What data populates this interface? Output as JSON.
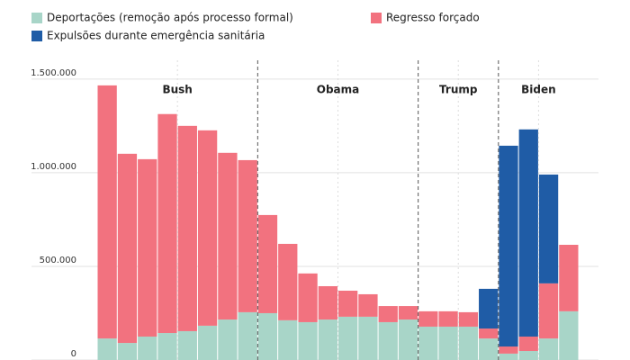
{
  "chart_data": {
    "type": "stacked_bar",
    "categories": [
      null,
      null,
      null,
      null,
      null,
      null,
      null,
      null,
      null,
      null,
      null,
      null,
      null,
      null,
      null,
      null,
      null,
      null,
      null,
      null,
      null,
      null,
      null,
      null
    ],
    "series": [
      {
        "name": "Deportações (remoção após processo formal)",
        "color": "#a8d5c8",
        "values": [
          115000,
          91000,
          125000,
          144000,
          154000,
          183000,
          216000,
          255000,
          250000,
          212000,
          202000,
          216000,
          231000,
          231000,
          202000,
          216000,
          178000,
          178000,
          178000,
          115000,
          34000,
          48000,
          115000,
          260000
        ]
      },
      {
        "name": "Regresso forçado",
        "color": "#f2727f",
        "values": [
          1351000,
          1010000,
          947000,
          1169000,
          1096000,
          1043000,
          890000,
          812000,
          524000,
          408000,
          260000,
          178000,
          139000,
          120000,
          86000,
          72000,
          82000,
          82000,
          77000,
          53000,
          38000,
          77000,
          294000,
          355000
        ]
      },
      {
        "name": "Expulsões durante emergência sanitária",
        "color": "#1f5ca6",
        "values": [
          0,
          0,
          0,
          0,
          0,
          0,
          0,
          0,
          0,
          0,
          0,
          0,
          0,
          0,
          0,
          0,
          0,
          0,
          0,
          212000,
          1072000,
          1106000,
          581000,
          0
        ]
      }
    ],
    "periods": [
      {
        "label": "Bush",
        "count": 8
      },
      {
        "label": "Obama",
        "count": 8
      },
      {
        "label": "Trump",
        "count": 4
      },
      {
        "label": "Biden",
        "count": 4
      }
    ],
    "ylim": [
      0,
      1600000
    ],
    "yticks": [
      {
        "value": 0,
        "label": "0"
      },
      {
        "value": 500000,
        "label": "500.000"
      },
      {
        "value": 1000000,
        "label": "1.000.000"
      },
      {
        "value": 1500000,
        "label": "1.500.000"
      }
    ],
    "grid": true
  }
}
